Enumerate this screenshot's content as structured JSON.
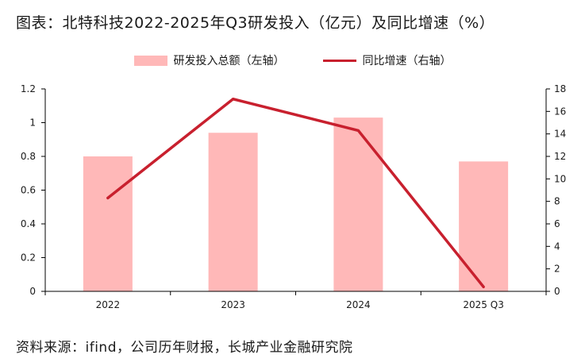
{
  "title": "图表：北特科技2022-2025年Q3研发投入（亿元）及同比增速（%）",
  "source": "资料来源：ifind，公司历年财报，长城产业金融研究院",
  "colors": {
    "bar": "#ffb8b8",
    "line": "#c8202e",
    "axis": "#000000"
  },
  "chart_data": {
    "type": "bar",
    "categories": [
      "2022",
      "2023",
      "2024",
      "2025 Q3"
    ],
    "series": [
      {
        "name": "研发投入总额（左轴）",
        "type": "bar",
        "axis": "left",
        "values": [
          0.8,
          0.94,
          1.03,
          0.77
        ]
      },
      {
        "name": "同比增速（右轴）",
        "type": "line",
        "axis": "right",
        "values": [
          8.3,
          17.1,
          14.3,
          0.4
        ]
      }
    ],
    "y_left": {
      "ylim": [
        0,
        1.2
      ],
      "ticks": [
        "0",
        "0.2",
        "0.4",
        "0.6",
        "0.8",
        "1",
        "1.2"
      ]
    },
    "y_right": {
      "ylim": [
        0,
        18
      ],
      "ticks": [
        "0",
        "2",
        "4",
        "6",
        "8",
        "10",
        "12",
        "14",
        "16",
        "18"
      ]
    },
    "grid": false,
    "legend_position": "top-center"
  }
}
